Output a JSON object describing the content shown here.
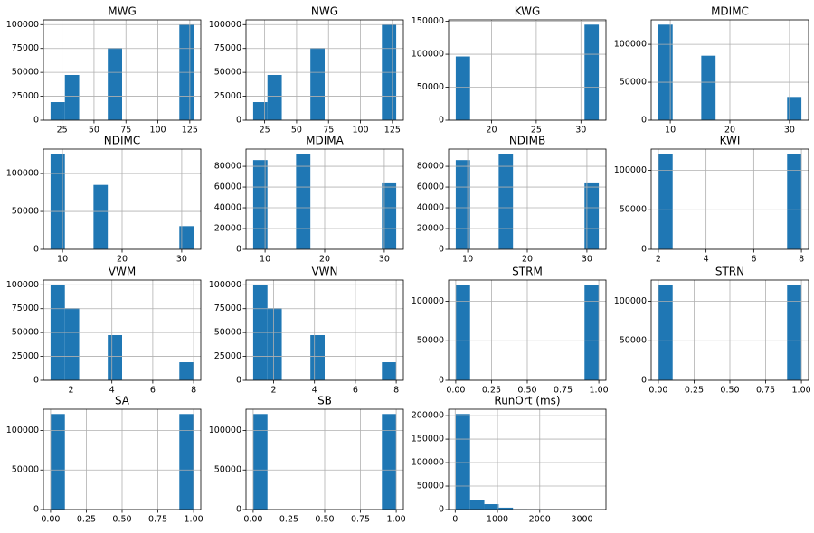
{
  "chart_data": [
    {
      "type": "histogram",
      "title": "MWG",
      "bins": [
        16,
        27.2,
        38.4,
        49.6,
        60.8,
        72,
        83.2,
        94.4,
        105.6,
        116.8,
        128
      ],
      "values": [
        18900,
        47300,
        0,
        0,
        75500,
        0,
        0,
        0,
        0,
        99900
      ],
      "color": "#1f77b4",
      "xlim": [
        10.4,
        133.6
      ],
      "ylim": [
        0,
        105000
      ],
      "xticks": [
        25,
        50,
        75,
        100,
        125
      ],
      "yticks": [
        0,
        25000,
        50000,
        75000,
        100000
      ],
      "grid": true
    },
    {
      "type": "histogram",
      "title": "NWG",
      "bins": [
        16,
        27.2,
        38.4,
        49.6,
        60.8,
        72,
        83.2,
        94.4,
        105.6,
        116.8,
        128
      ],
      "values": [
        18900,
        47300,
        0,
        0,
        75500,
        0,
        0,
        0,
        0,
        99900
      ],
      "color": "#1f77b4",
      "xlim": [
        10.4,
        133.6
      ],
      "ylim": [
        0,
        105000
      ],
      "xticks": [
        25,
        50,
        75,
        100,
        125
      ],
      "yticks": [
        0,
        25000,
        50000,
        75000,
        100000
      ],
      "grid": true
    },
    {
      "type": "histogram",
      "title": "KWG",
      "bins": [
        16,
        17.6,
        19.2,
        20.8,
        22.4,
        24,
        25.6,
        27.2,
        28.8,
        30.4,
        32
      ],
      "values": [
        96640,
        0,
        0,
        0,
        0,
        0,
        0,
        0,
        0,
        144960
      ],
      "color": "#1f77b4",
      "xlim": [
        15.2,
        32.8
      ],
      "ylim": [
        0,
        152208
      ],
      "xticks": [
        20,
        25,
        30
      ],
      "yticks": [
        0,
        50000,
        100000,
        150000
      ],
      "grid": true
    },
    {
      "type": "histogram",
      "title": "MDIMC",
      "bins": [
        8,
        10.4,
        12.8,
        15.2,
        17.6,
        20,
        22.4,
        24.8,
        27.2,
        29.6,
        32
      ],
      "values": [
        126000,
        0,
        0,
        85000,
        0,
        0,
        0,
        0,
        0,
        30600
      ],
      "color": "#1f77b4",
      "xlim": [
        6.8,
        33.2
      ],
      "ylim": [
        0,
        132300
      ],
      "xticks": [
        10,
        20,
        30
      ],
      "yticks": [
        0,
        50000,
        100000
      ],
      "grid": true
    },
    {
      "type": "histogram",
      "title": "NDIMC",
      "bins": [
        8,
        10.4,
        12.8,
        15.2,
        17.6,
        20,
        22.4,
        24.8,
        27.2,
        29.6,
        32
      ],
      "values": [
        126000,
        0,
        0,
        85000,
        0,
        0,
        0,
        0,
        0,
        30600
      ],
      "color": "#1f77b4",
      "xlim": [
        6.8,
        33.2
      ],
      "ylim": [
        0,
        132300
      ],
      "xticks": [
        10,
        20,
        30
      ],
      "yticks": [
        0,
        50000,
        100000
      ],
      "grid": true
    },
    {
      "type": "histogram",
      "title": "MDIMA",
      "bins": [
        8,
        10.4,
        12.8,
        15.2,
        17.6,
        20,
        22.4,
        24.8,
        27.2,
        29.6,
        32
      ],
      "values": [
        86000,
        0,
        0,
        92000,
        0,
        0,
        0,
        0,
        0,
        63600
      ],
      "color": "#1f77b4",
      "xlim": [
        6.8,
        33.2
      ],
      "ylim": [
        0,
        96600
      ],
      "xticks": [
        10,
        20,
        30
      ],
      "yticks": [
        0,
        20000,
        40000,
        60000,
        80000
      ],
      "grid": true
    },
    {
      "type": "histogram",
      "title": "NDIMB",
      "bins": [
        8,
        10.4,
        12.8,
        15.2,
        17.6,
        20,
        22.4,
        24.8,
        27.2,
        29.6,
        32
      ],
      "values": [
        86000,
        0,
        0,
        92000,
        0,
        0,
        0,
        0,
        0,
        63600
      ],
      "color": "#1f77b4",
      "xlim": [
        6.8,
        33.2
      ],
      "ylim": [
        0,
        96600
      ],
      "xticks": [
        10,
        20,
        30
      ],
      "yticks": [
        0,
        20000,
        40000,
        60000,
        80000
      ],
      "grid": true
    },
    {
      "type": "histogram",
      "title": "KWI",
      "bins": [
        2,
        2.6,
        3.2,
        3.8,
        4.4,
        5,
        5.6,
        6.2,
        6.8,
        7.4,
        8
      ],
      "values": [
        120800,
        0,
        0,
        0,
        0,
        0,
        0,
        0,
        0,
        120800
      ],
      "color": "#1f77b4",
      "xlim": [
        1.7,
        8.3
      ],
      "ylim": [
        0,
        126840
      ],
      "xticks": [
        2,
        4,
        6,
        8
      ],
      "yticks": [
        0,
        50000,
        100000
      ],
      "grid": true
    },
    {
      "type": "histogram",
      "title": "VWM",
      "bins": [
        1,
        1.7,
        2.4,
        3.1,
        3.8,
        4.5,
        5.2,
        5.9,
        6.6,
        7.3,
        8
      ],
      "values": [
        99900,
        75500,
        0,
        0,
        47300,
        0,
        0,
        0,
        0,
        18900
      ],
      "color": "#1f77b4",
      "xlim": [
        0.65,
        8.35
      ],
      "ylim": [
        0,
        105000
      ],
      "xticks": [
        2,
        4,
        6,
        8
      ],
      "yticks": [
        0,
        25000,
        50000,
        75000,
        100000
      ],
      "grid": true
    },
    {
      "type": "histogram",
      "title": "VWN",
      "bins": [
        1,
        1.7,
        2.4,
        3.1,
        3.8,
        4.5,
        5.2,
        5.9,
        6.6,
        7.3,
        8
      ],
      "values": [
        99900,
        75500,
        0,
        0,
        47300,
        0,
        0,
        0,
        0,
        18900
      ],
      "color": "#1f77b4",
      "xlim": [
        0.65,
        8.35
      ],
      "ylim": [
        0,
        105000
      ],
      "xticks": [
        2,
        4,
        6,
        8
      ],
      "yticks": [
        0,
        25000,
        50000,
        75000,
        100000
      ],
      "grid": true
    },
    {
      "type": "histogram",
      "title": "STRM",
      "bins": [
        0,
        0.1,
        0.2,
        0.3,
        0.4,
        0.5,
        0.6,
        0.7,
        0.8,
        0.9,
        1
      ],
      "values": [
        120800,
        0,
        0,
        0,
        0,
        0,
        0,
        0,
        0,
        120800
      ],
      "color": "#1f77b4",
      "xlim": [
        -0.05,
        1.05
      ],
      "ylim": [
        0,
        126840
      ],
      "xticks": [
        {
          "value": 0,
          "label": "0.00"
        },
        {
          "value": 0.25,
          "label": "0.25"
        },
        {
          "value": 0.5,
          "label": "0.50"
        },
        {
          "value": 0.75,
          "label": "0.75"
        },
        {
          "value": 1,
          "label": "1.00"
        }
      ],
      "yticks": [
        0,
        50000,
        100000
      ],
      "grid": true
    },
    {
      "type": "histogram",
      "title": "STRN",
      "bins": [
        0,
        0.1,
        0.2,
        0.3,
        0.4,
        0.5,
        0.6,
        0.7,
        0.8,
        0.9,
        1
      ],
      "values": [
        120800,
        0,
        0,
        0,
        0,
        0,
        0,
        0,
        0,
        120800
      ],
      "color": "#1f77b4",
      "xlim": [
        -0.05,
        1.05
      ],
      "ylim": [
        0,
        126840
      ],
      "xticks": [
        {
          "value": 0,
          "label": "0.00"
        },
        {
          "value": 0.25,
          "label": "0.25"
        },
        {
          "value": 0.5,
          "label": "0.50"
        },
        {
          "value": 0.75,
          "label": "0.75"
        },
        {
          "value": 1,
          "label": "1.00"
        }
      ],
      "yticks": [
        0,
        50000,
        100000
      ],
      "grid": true
    },
    {
      "type": "histogram",
      "title": "SA",
      "bins": [
        0,
        0.1,
        0.2,
        0.3,
        0.4,
        0.5,
        0.6,
        0.7,
        0.8,
        0.9,
        1
      ],
      "values": [
        120800,
        0,
        0,
        0,
        0,
        0,
        0,
        0,
        0,
        120800
      ],
      "color": "#1f77b4",
      "xlim": [
        -0.05,
        1.05
      ],
      "ylim": [
        0,
        126840
      ],
      "xticks": [
        {
          "value": 0,
          "label": "0.00"
        },
        {
          "value": 0.25,
          "label": "0.25"
        },
        {
          "value": 0.5,
          "label": "0.50"
        },
        {
          "value": 0.75,
          "label": "0.75"
        },
        {
          "value": 1,
          "label": "1.00"
        }
      ],
      "yticks": [
        0,
        50000,
        100000
      ],
      "grid": true
    },
    {
      "type": "histogram",
      "title": "SB",
      "bins": [
        0,
        0.1,
        0.2,
        0.3,
        0.4,
        0.5,
        0.6,
        0.7,
        0.8,
        0.9,
        1
      ],
      "values": [
        120800,
        0,
        0,
        0,
        0,
        0,
        0,
        0,
        0,
        120800
      ],
      "color": "#1f77b4",
      "xlim": [
        -0.05,
        1.05
      ],
      "ylim": [
        0,
        126840
      ],
      "xticks": [
        {
          "value": 0,
          "label": "0.00"
        },
        {
          "value": 0.25,
          "label": "0.25"
        },
        {
          "value": 0.5,
          "label": "0.50"
        },
        {
          "value": 0.75,
          "label": "0.75"
        },
        {
          "value": 1,
          "label": "1.00"
        }
      ],
      "yticks": [
        0,
        50000,
        100000
      ],
      "grid": true
    },
    {
      "type": "histogram",
      "title": "RunOrt (ms)",
      "bins": [
        13,
        351.5,
        690,
        1028.5,
        1367,
        1705.5,
        2044,
        2382.5,
        2721,
        3059.5,
        3398
      ],
      "values": [
        203500,
        20500,
        11500,
        4000,
        1000,
        700,
        600,
        300,
        0,
        0
      ],
      "color": "#1f77b4",
      "xlim": [
        -156,
        3567
      ],
      "ylim": [
        0,
        213700
      ],
      "xticks": [
        0,
        1000,
        2000,
        3000
      ],
      "yticks": [
        0,
        50000,
        100000,
        150000,
        200000
      ],
      "grid": true
    }
  ]
}
